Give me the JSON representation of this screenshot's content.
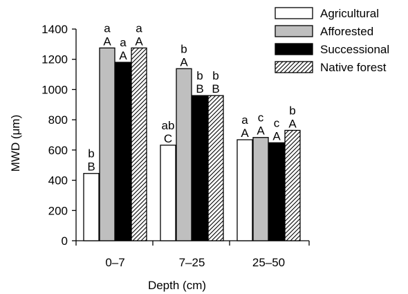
{
  "chart_data": {
    "type": "bar",
    "xlabel": "Depth (cm)",
    "ylabel": "MWD (μm)",
    "ylim": [
      0,
      1400
    ],
    "yticks": [
      0,
      200,
      400,
      600,
      800,
      1000,
      1200,
      1400
    ],
    "categories": [
      "0–7",
      "7–25",
      "25–50"
    ],
    "series": [
      {
        "name": "Agricultural",
        "fill": "#ffffff",
        "pattern": "none",
        "values": [
          445,
          632,
          668
        ],
        "lower_letters": [
          "b",
          "ab",
          "a"
        ],
        "upper_letters": [
          "B",
          "C",
          "A"
        ]
      },
      {
        "name": "Afforested",
        "fill": "#bfbfbf",
        "pattern": "none",
        "values": [
          1275,
          1138,
          683
        ],
        "lower_letters": [
          "a",
          "b",
          "c"
        ],
        "upper_letters": [
          "A",
          "A",
          "A"
        ]
      },
      {
        "name": "Successional",
        "fill": "#000000",
        "pattern": "none",
        "values": [
          1180,
          960,
          648
        ],
        "lower_letters": [
          "a",
          "b",
          "c"
        ],
        "upper_letters": [
          "A",
          "B",
          "A"
        ]
      },
      {
        "name": "Native forest",
        "fill": "#ffffff",
        "pattern": "diagonal-hatch",
        "values": [
          1275,
          960,
          730
        ],
        "lower_letters": [
          "a",
          "b",
          "b"
        ],
        "upper_letters": [
          "A",
          "B",
          "A"
        ]
      }
    ],
    "legend_position": "top-right",
    "grid": false
  }
}
